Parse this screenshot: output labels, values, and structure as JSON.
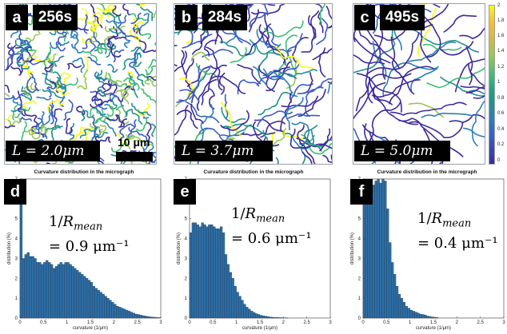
{
  "panels": [
    {
      "letter": "a",
      "time": "256s",
      "length_label": "L = 2.0μm"
    },
    {
      "letter": "b",
      "time": "284s",
      "length_label": "L = 3.7μm"
    },
    {
      "letter": "c",
      "time": "495s",
      "length_label": "L = 5.0μm"
    }
  ],
  "scale_bar_label": "10 μm",
  "colorbar": {
    "ticks": [
      "2",
      "1.8",
      "1.6",
      "1.4",
      "1.2",
      "1",
      "0.8",
      "0.6",
      "0.4",
      "0.2",
      "0"
    ],
    "colors": {
      "top": "#f9fb0e",
      "mid": "#21918c",
      "bottom": "#3d2b9a"
    }
  },
  "histograms": [
    {
      "letter": "d",
      "rmean_line1": "1/R_mean",
      "rmean_line2": "= 0.9 μm⁻¹"
    },
    {
      "letter": "e",
      "rmean_line1": "1/R_mean",
      "rmean_line2": "= 0.6 μm⁻¹"
    },
    {
      "letter": "f",
      "rmean_line1": "1/R_mean",
      "rmean_line2": "= 0.4 μm⁻¹"
    }
  ],
  "chart_data": [
    {
      "type": "bar",
      "title": "Curvature distribution in the micrograph",
      "xlabel": "curvature (1/μm)",
      "ylabel": "distribution (%)",
      "xlim": [
        0,
        3
      ],
      "ylim": [
        0,
        7
      ],
      "xticks": [
        "0",
        "0.5",
        "1",
        "1.5",
        "2",
        "2.5",
        "3"
      ],
      "yticks": [
        "0",
        "1",
        "2",
        "3",
        "4",
        "5",
        "6",
        "7"
      ],
      "bin_width": 0.05,
      "bar_color": "#2e6da4",
      "values": [
        7.0,
        3.0,
        3.2,
        3.3,
        3.1,
        3.1,
        3.0,
        2.8,
        2.8,
        2.7,
        2.8,
        2.9,
        2.8,
        2.7,
        2.5,
        2.6,
        2.7,
        2.8,
        2.7,
        2.8,
        2.8,
        2.7,
        2.6,
        2.5,
        2.4,
        2.3,
        2.2,
        2.1,
        2.0,
        1.9,
        1.8,
        1.6,
        1.5,
        1.4,
        1.3,
        1.2,
        1.1,
        1.0,
        0.9,
        0.8,
        0.7,
        0.6,
        0.55,
        0.5,
        0.45,
        0.4,
        0.35,
        0.3,
        0.25,
        0.2,
        0.18,
        0.15,
        0.12,
        0.1,
        0.08,
        0.06,
        0.05,
        0.04,
        0.03,
        0.02
      ]
    },
    {
      "type": "bar",
      "title": "Curvature distribution in the micrograph",
      "xlabel": "curvature (1/μm)",
      "ylabel": "distribution (%)",
      "xlim": [
        0,
        3
      ],
      "ylim": [
        0,
        7
      ],
      "xticks": [
        "0",
        "0.5",
        "1",
        "1.5",
        "2",
        "2.5",
        "3"
      ],
      "yticks": [
        "0",
        "1",
        "2",
        "3",
        "4",
        "5",
        "6",
        "7"
      ],
      "bin_width": 0.05,
      "bar_color": "#2e6da4",
      "values": [
        4.3,
        4.8,
        4.8,
        4.7,
        4.6,
        4.8,
        4.7,
        4.6,
        4.7,
        4.7,
        4.6,
        4.5,
        4.5,
        4.6,
        4.3,
        3.2,
        2.7,
        2.3,
        2.0,
        1.6,
        1.3,
        1.1,
        0.9,
        0.7,
        0.55,
        0.45,
        0.35,
        0.28,
        0.22,
        0.18,
        0.14,
        0.11,
        0.09,
        0.07,
        0.05,
        0.04,
        0.03,
        0.03,
        0.02,
        0.02,
        0.01,
        0.01
      ]
    },
    {
      "type": "bar",
      "title": "Curvature distribution in the micrograph",
      "xlabel": "curvature (1/μm)",
      "ylabel": "distribution (%)",
      "xlim": [
        0,
        3
      ],
      "ylim": [
        0,
        7
      ],
      "xticks": [
        "0",
        "0.5",
        "1",
        "1.5",
        "2",
        "2.5",
        "3"
      ],
      "yticks": [
        "0",
        "1",
        "2",
        "3",
        "4",
        "5",
        "6",
        "7"
      ],
      "bin_width": 0.05,
      "bar_color": "#2e6da4",
      "values": [
        6.8,
        6.6,
        6.9,
        6.8,
        6.7,
        6.9,
        7.0,
        6.8,
        7.0,
        6.9,
        5.5,
        3.8,
        2.8,
        2.2,
        1.6,
        1.2,
        1.0,
        0.8,
        0.6,
        0.5,
        0.4,
        0.35,
        0.3,
        0.25,
        0.2,
        0.18,
        0.15,
        0.1,
        0.08,
        0.05,
        0.04,
        0.03
      ]
    }
  ]
}
